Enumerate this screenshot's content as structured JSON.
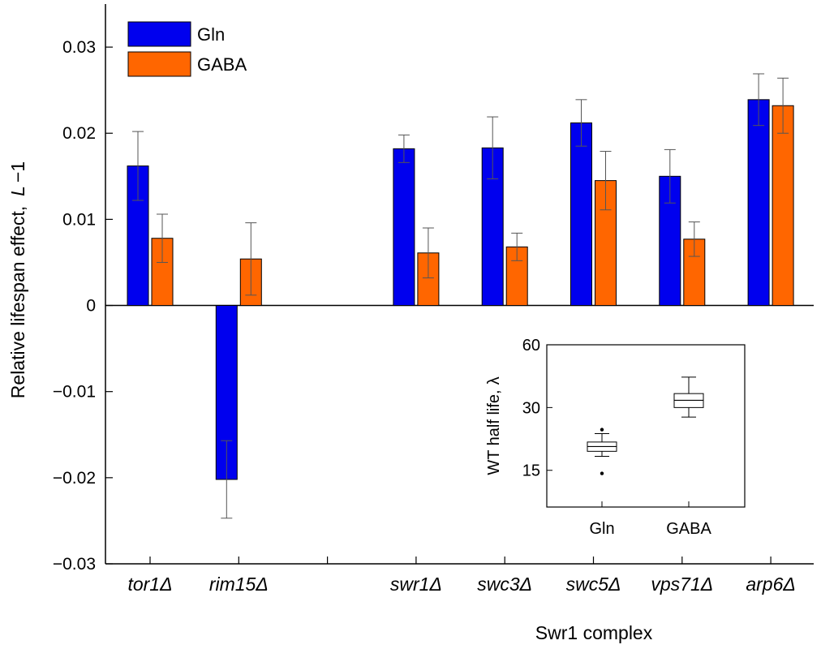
{
  "chart_data": [
    {
      "type": "bar",
      "ylabel": "Relative lifespan effect,",
      "ylabel_symbol": "L",
      "ylabel_suffix": "−1",
      "xlabel": "Swr1 complex",
      "ylim": [
        -0.03,
        0.035
      ],
      "yticks": [
        -0.03,
        -0.02,
        -0.01,
        0,
        0.01,
        0.02,
        0.03
      ],
      "ytick_labels": [
        "−0.03",
        "−0.02",
        "−0.01",
        "0",
        "0.01",
        "0.02",
        "0.03"
      ],
      "legend_position": "top-left",
      "grid": false,
      "categories": [
        "tor1Δ",
        "rim15Δ",
        "swr1Δ",
        "swc3Δ",
        "swc5Δ",
        "vps71Δ",
        "arp6Δ"
      ],
      "series": [
        {
          "name": "Gln",
          "color": "#0000ee",
          "values": [
            0.0162,
            -0.0202,
            0.0182,
            0.0183,
            0.0212,
            0.015,
            0.0239
          ],
          "errors": [
            0.004,
            0.0045,
            0.0016,
            0.0036,
            0.0027,
            0.0031,
            0.003
          ]
        },
        {
          "name": "GABA",
          "color": "#ff6600",
          "values": [
            0.0078,
            0.0054,
            0.0061,
            0.0068,
            0.0145,
            0.0077,
            0.0232
          ],
          "errors": [
            0.0028,
            0.0042,
            0.0029,
            0.0016,
            0.0034,
            0.002,
            0.0032
          ]
        }
      ]
    },
    {
      "type": "box",
      "ylabel": "WT half life,",
      "ylabel_symbol": "λ",
      "ylim": [
        10,
        60
      ],
      "yscale": "log",
      "yticks": [
        15,
        30,
        60
      ],
      "ytick_labels": [
        "15",
        "30",
        "60"
      ],
      "categories": [
        "Gln",
        "GABA"
      ],
      "boxes": [
        {
          "name": "Gln",
          "whisker_low": 17.5,
          "q1": 18.5,
          "median": 19.5,
          "q3": 20.5,
          "whisker_high": 22.5,
          "outliers": [
            14.5,
            23.5
          ]
        },
        {
          "name": "GABA",
          "whisker_low": 27,
          "q1": 30,
          "median": 32.5,
          "q3": 35,
          "whisker_high": 42,
          "outliers": []
        }
      ]
    }
  ]
}
